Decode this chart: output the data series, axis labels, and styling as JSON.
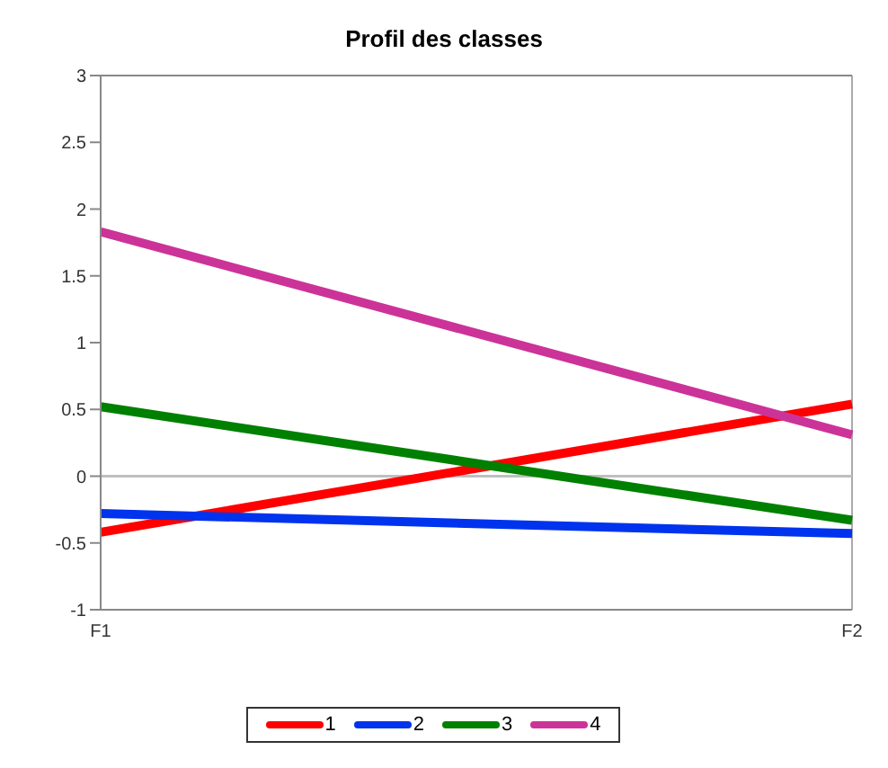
{
  "chart_data": {
    "type": "line",
    "title": "Profil des classes",
    "categories": [
      "F1",
      "F2"
    ],
    "series": [
      {
        "name": "1",
        "color": "#ff0000",
        "values": [
          -0.42,
          0.54
        ]
      },
      {
        "name": "2",
        "color": "#0033ee",
        "values": [
          -0.28,
          -0.43
        ]
      },
      {
        "name": "3",
        "color": "#008000",
        "values": [
          0.52,
          -0.33
        ]
      },
      {
        "name": "4",
        "color": "#cc3399",
        "values": [
          1.83,
          0.31
        ]
      }
    ],
    "ylim": [
      -1,
      3
    ],
    "yticks": [
      -1,
      -0.5,
      0,
      0.5,
      1,
      1.5,
      2,
      2.5,
      3
    ],
    "grid": "x",
    "legend": "bottom",
    "marker": "none",
    "line_style": "solid",
    "ref_lines": [
      {
        "axis": "y",
        "value": 0,
        "color": "#bfbfbf"
      }
    ]
  }
}
